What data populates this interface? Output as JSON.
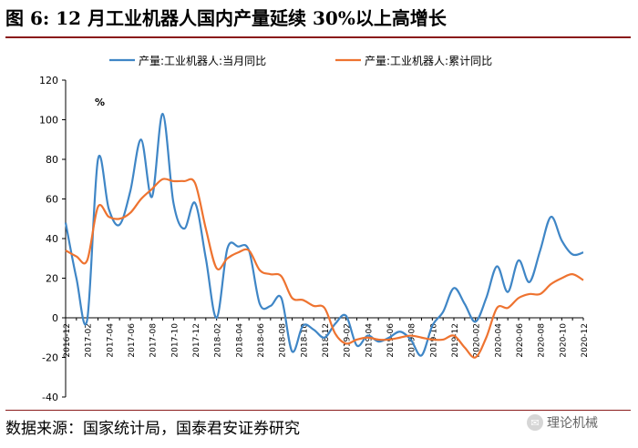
{
  "header": {
    "title": "图 6:  12 月工业机器人国内产量延续 30%以上高增长"
  },
  "footer": {
    "source": "数据来源：国家统计局，国泰君安证券研究",
    "watermark": "理论机械"
  },
  "chart_data": {
    "type": "line",
    "title": "图 6:  12 月工业机器人国内产量延续 30%以上高增长",
    "ylabel": "%",
    "xlabel": "",
    "ylim": [
      -40,
      120
    ],
    "yticks": [
      -40,
      -20,
      0,
      20,
      40,
      60,
      80,
      100,
      120
    ],
    "xtick_labels": [
      "2016-12",
      "2017-02",
      "2017-04",
      "2017-06",
      "2017-08",
      "2017-10",
      "2017-12",
      "2018-02",
      "2018-04",
      "2018-06",
      "2018-08",
      "2018-10",
      "2018-12",
      "2019-02",
      "2019-04",
      "2019-06",
      "2019-08",
      "2019-10",
      "2019-12",
      "2020-02",
      "2020-04",
      "2020-06",
      "2020-08",
      "2020-10",
      "2020-12"
    ],
    "months": [
      "2016-12",
      "2017-01",
      "2017-02",
      "2017-03",
      "2017-04",
      "2017-05",
      "2017-06",
      "2017-07",
      "2017-08",
      "2017-09",
      "2017-10",
      "2017-11",
      "2017-12",
      "2018-01",
      "2018-02",
      "2018-03",
      "2018-04",
      "2018-05",
      "2018-06",
      "2018-07",
      "2018-08",
      "2018-09",
      "2018-10",
      "2018-11",
      "2018-12",
      "2019-01",
      "2019-02",
      "2019-03",
      "2019-04",
      "2019-05",
      "2019-06",
      "2019-07",
      "2019-08",
      "2019-09",
      "2019-10",
      "2019-11",
      "2019-12",
      "2020-01",
      "2020-02",
      "2020-03",
      "2020-04",
      "2020-05",
      "2020-06",
      "2020-07",
      "2020-08",
      "2020-09",
      "2020-10",
      "2020-11",
      "2020-12"
    ],
    "legend_position": "top",
    "series": [
      {
        "name": "产量:工业机器人:当月同比",
        "color": "#3f86c6",
        "values": [
          48,
          20,
          -1,
          80,
          55,
          47,
          64,
          90,
          61,
          103,
          58,
          45,
          58,
          30,
          0,
          35,
          36,
          34,
          7,
          6,
          10,
          -17,
          -4,
          -6,
          -10,
          -3,
          1,
          -14,
          -9,
          -12,
          -10,
          -7,
          -11,
          -19,
          -4,
          3,
          15,
          7,
          -2,
          10,
          26,
          13,
          29,
          18,
          34,
          51,
          39,
          32,
          33
        ]
      },
      {
        "name": "产量:工业机器人:累计同比",
        "color": "#ee7330",
        "values": [
          34,
          31,
          29,
          56,
          51,
          50,
          53,
          60,
          65,
          70,
          69,
          69,
          68,
          45,
          25,
          30,
          33,
          34,
          24,
          22,
          21,
          10,
          9,
          6,
          5,
          -8,
          -13,
          -11,
          -10,
          -11,
          -11,
          -10,
          -9,
          -10,
          -11,
          -11,
          -9,
          -15,
          -20,
          -10,
          5,
          5,
          10,
          12,
          12,
          17,
          20,
          22,
          19
        ]
      }
    ]
  }
}
